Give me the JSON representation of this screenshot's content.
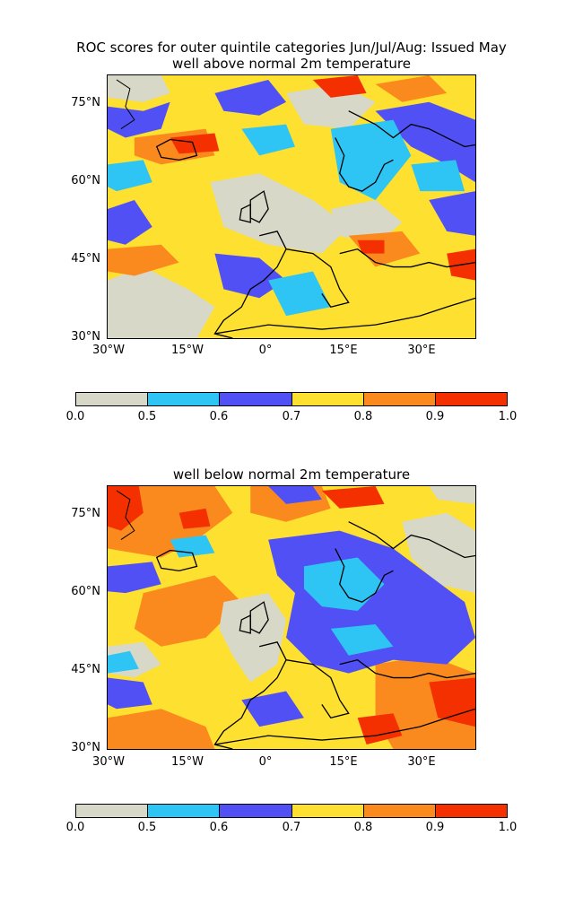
{
  "figure": {
    "title_line1": "ROC scores for outer quintile categories Jun/Jul/Aug: Issued May",
    "panel1_title": "well above normal 2m temperature",
    "panel2_title": "well below normal 2m temperature"
  },
  "axes": {
    "lat_ticks": [
      "75°N",
      "60°N",
      "45°N",
      "30°N"
    ],
    "lon_ticks": [
      "30°W",
      "15°W",
      "0°",
      "15°E",
      "30°E"
    ]
  },
  "colorbar": {
    "bounds": [
      "0.0",
      "0.5",
      "0.6",
      "0.7",
      "0.8",
      "0.9",
      "1.0"
    ],
    "colors": [
      "#d8d8c8",
      "#2ec5f5",
      "#5050f5",
      "#fde030",
      "#fb8a1e",
      "#f53000"
    ]
  }
}
